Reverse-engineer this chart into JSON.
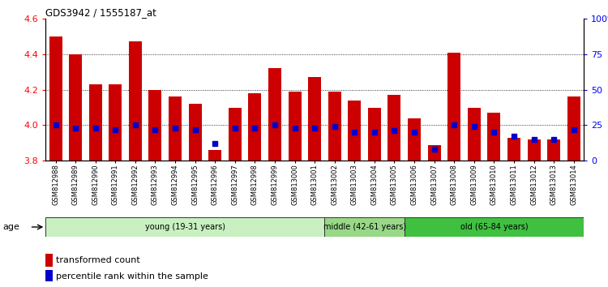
{
  "title": "GDS3942 / 1555187_at",
  "samples": [
    "GSM812988",
    "GSM812989",
    "GSM812990",
    "GSM812991",
    "GSM812992",
    "GSM812993",
    "GSM812994",
    "GSM812995",
    "GSM812996",
    "GSM812997",
    "GSM812998",
    "GSM812999",
    "GSM813000",
    "GSM813001",
    "GSM813002",
    "GSM813003",
    "GSM813004",
    "GSM813005",
    "GSM813006",
    "GSM813007",
    "GSM813008",
    "GSM813009",
    "GSM813010",
    "GSM813011",
    "GSM813012",
    "GSM813013",
    "GSM813014"
  ],
  "transformed_count": [
    4.5,
    4.4,
    4.23,
    4.23,
    4.47,
    4.2,
    4.16,
    4.12,
    3.86,
    4.1,
    4.18,
    4.32,
    4.19,
    4.27,
    4.19,
    4.14,
    4.1,
    4.17,
    4.04,
    3.89,
    4.41,
    4.1,
    4.07,
    3.93,
    3.92,
    3.92,
    4.16
  ],
  "percentile": [
    25,
    23,
    23,
    22,
    25,
    22,
    23,
    22,
    12,
    23,
    23,
    25,
    23,
    23,
    24,
    20,
    20,
    21,
    20,
    8,
    25,
    24,
    20,
    17,
    15,
    15,
    22
  ],
  "groups": [
    {
      "label": "young (19-31 years)",
      "start": 0,
      "end": 14,
      "color": "#c8f0c0"
    },
    {
      "label": "middle (42-61 years)",
      "start": 14,
      "end": 18,
      "color": "#98d888"
    },
    {
      "label": "old (65-84 years)",
      "start": 18,
      "end": 27,
      "color": "#40c040"
    }
  ],
  "ylim_left": [
    3.8,
    4.6
  ],
  "ylim_right": [
    0,
    100
  ],
  "bar_color": "#cc0000",
  "dot_color": "#0000cc",
  "baseline": 3.8,
  "yticks_left": [
    3.8,
    4.0,
    4.2,
    4.4,
    4.6
  ],
  "yticks_right": [
    0,
    25,
    50,
    75,
    100
  ],
  "grid_values": [
    4.0,
    4.2,
    4.4
  ],
  "bar_width": 0.65
}
